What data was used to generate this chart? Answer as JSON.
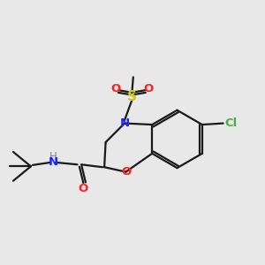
{
  "bg_color": "#e8e8e8",
  "atom_colors": {
    "C": "#1a1a1a",
    "N": "#2020ff",
    "O": "#ff2020",
    "S": "#cccc00",
    "Cl": "#4aaf4a",
    "H": "#808080"
  },
  "bond_color": "#1a1a1a",
  "figsize": [
    3.0,
    3.0
  ],
  "dpi": 100
}
